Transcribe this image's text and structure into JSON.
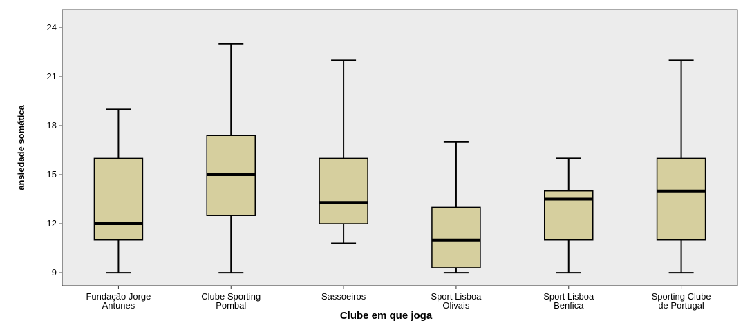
{
  "chart_data": {
    "type": "boxplot",
    "xlabel": "Clube em que joga",
    "ylabel": "ansiedade somática",
    "ylim": [
      8.2,
      25.1
    ],
    "yticks": [
      9,
      12,
      15,
      18,
      21,
      24
    ],
    "grid": false,
    "colors": {
      "plot_background": "#ececec",
      "box_fill": "#d6cf9e",
      "stroke": "#000000"
    },
    "categories": [
      {
        "lines": [
          "Fundação Jorge",
          "Antunes"
        ]
      },
      {
        "lines": [
          "Clube Sporting",
          "Pombal"
        ]
      },
      {
        "lines": [
          "Sassoeiros"
        ]
      },
      {
        "lines": [
          "Sport Lisboa",
          "Olivais"
        ]
      },
      {
        "lines": [
          "Sport Lisboa",
          "Benfica"
        ]
      },
      {
        "lines": [
          "Sporting Clube",
          "de Portugal"
        ]
      }
    ],
    "boxes": [
      {
        "min": 9,
        "q1": 11,
        "median": 12,
        "q3": 16,
        "max": 19
      },
      {
        "min": 9,
        "q1": 12.5,
        "median": 15,
        "q3": 17.4,
        "max": 23
      },
      {
        "min": 10.8,
        "q1": 12,
        "median": 13.3,
        "q3": 16,
        "max": 22
      },
      {
        "min": 9,
        "q1": 9.3,
        "median": 11,
        "q3": 13,
        "max": 17
      },
      {
        "min": 9,
        "q1": 11,
        "median": 13.5,
        "q3": 14,
        "max": 16
      },
      {
        "min": 9,
        "q1": 11,
        "median": 14,
        "q3": 16,
        "max": 22
      }
    ]
  }
}
